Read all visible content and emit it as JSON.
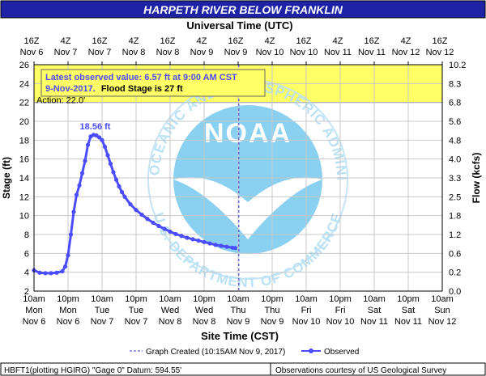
{
  "header": {
    "title": "HARPETH RIVER BELOW FRANKLIN",
    "top_axis_title": "Universal Time (UTC)"
  },
  "axes": {
    "left_label": "Stage (ft)",
    "right_label": "Flow (kcfs)",
    "bottom_label": "Site Time (CST)"
  },
  "top_ticks": [
    {
      "t": "16Z",
      "d": "Nov 6"
    },
    {
      "t": "4Z",
      "d": "Nov 7"
    },
    {
      "t": "16Z",
      "d": "Nov 7"
    },
    {
      "t": "4Z",
      "d": "Nov 8"
    },
    {
      "t": "16Z",
      "d": "Nov 8"
    },
    {
      "t": "4Z",
      "d": "Nov 9"
    },
    {
      "t": "16Z",
      "d": "Nov 9"
    },
    {
      "t": "4Z",
      "d": "Nov 10"
    },
    {
      "t": "16Z",
      "d": "Nov 10"
    },
    {
      "t": "4Z",
      "d": "Nov 11"
    },
    {
      "t": "16Z",
      "d": "Nov 11"
    },
    {
      "t": "4Z",
      "d": "Nov 12"
    },
    {
      "t": "16Z",
      "d": "Nov 12"
    }
  ],
  "bottom_ticks": [
    {
      "t": "10am",
      "w": "Mon",
      "d": "Nov 6"
    },
    {
      "t": "10pm",
      "w": "Mon",
      "d": "Nov 6"
    },
    {
      "t": "10am",
      "w": "Tue",
      "d": "Nov 7"
    },
    {
      "t": "10pm",
      "w": "Tue",
      "d": "Nov 7"
    },
    {
      "t": "10am",
      "w": "Wed",
      "d": "Nov 8"
    },
    {
      "t": "10pm",
      "w": "Wed",
      "d": "Nov 8"
    },
    {
      "t": "10am",
      "w": "Thu",
      "d": "Nov 9"
    },
    {
      "t": "10pm",
      "w": "Thu",
      "d": "Nov 9"
    },
    {
      "t": "10am",
      "w": "Fri",
      "d": "Nov 10"
    },
    {
      "t": "10pm",
      "w": "Fri",
      "d": "Nov 10"
    },
    {
      "t": "10am",
      "w": "Sat",
      "d": "Nov 11"
    },
    {
      "t": "10pm",
      "w": "Sat",
      "d": "Nov 11"
    },
    {
      "t": "10am",
      "w": "Sun",
      "d": "Nov 12"
    }
  ],
  "stage_ticks": [
    "2",
    "4",
    "6",
    "8",
    "10",
    "12",
    "14",
    "16",
    "18",
    "20",
    "22",
    "24",
    "26"
  ],
  "flow_ticks": [
    "0.0",
    "0.2",
    "0.6",
    "1.2",
    "1.8",
    "2.5",
    "3.3",
    "4.0",
    "4.8",
    "5.6",
    "6.8",
    "8.3",
    "10.2"
  ],
  "annotation": {
    "line1": "Latest observed value: 6.57 ft at 9:00 AM CST",
    "line2_date": "9-Nov-2017.",
    "line2_flood": "Flood Stage is 27 ft"
  },
  "action_label": "Action: 22.0'",
  "peak_label": "18.56 ft",
  "legend": {
    "created": "Graph Created (10:15AM Nov 9, 2017)",
    "observed": "Observed"
  },
  "footer": {
    "left": "HBFT1(plotting HGIRG) \"Gage 0\" Datum: 594.55'",
    "right": "Observations courtesy of US Geological Survey"
  },
  "watermark": {
    "circle_text_top": "NATIONAL OCEANIC AND ATMOSPHERIC ADMINISTRATION",
    "circle_text_bottom": "U.S. DEPARTMENT OF COMMERCE",
    "center": "NOAA"
  },
  "colors": {
    "title_bg": "#1e22a4",
    "series": "#4c4cff",
    "flood_band": "#ffff66",
    "created_line": "#3b3bd6",
    "watermark": "#7ecbef"
  },
  "chart_data": {
    "type": "line",
    "title": "HARPETH RIVER BELOW FRANKLIN",
    "xlabel": "Site Time (CST)",
    "ylabel": "Stage (ft)",
    "y2label": "Flow (kcfs)",
    "ylim": [
      2,
      26
    ],
    "xlim": [
      "2017-11-06 10:00",
      "2017-11-12 10:00"
    ],
    "action_stage": 22.0,
    "flood_stage": 27,
    "graph_created": "2017-11-09 10:15",
    "series": [
      {
        "name": "Observed",
        "x": [
          "2017-11-06 10:00",
          "2017-11-06 12:00",
          "2017-11-06 14:00",
          "2017-11-06 16:00",
          "2017-11-06 18:00",
          "2017-11-06 20:00",
          "2017-11-06 21:00",
          "2017-11-06 22:00",
          "2017-11-06 23:00",
          "2017-11-07 00:00",
          "2017-11-07 01:00",
          "2017-11-07 02:00",
          "2017-11-07 03:00",
          "2017-11-07 04:00",
          "2017-11-07 05:00",
          "2017-11-07 06:00",
          "2017-11-07 07:00",
          "2017-11-07 08:00",
          "2017-11-07 09:00",
          "2017-11-07 10:00",
          "2017-11-07 11:00",
          "2017-11-07 12:00",
          "2017-11-07 13:00",
          "2017-11-07 14:00",
          "2017-11-07 15:00",
          "2017-11-07 16:00",
          "2017-11-07 17:00",
          "2017-11-07 18:00",
          "2017-11-07 20:00",
          "2017-11-07 22:00",
          "2017-11-08 00:00",
          "2017-11-08 02:00",
          "2017-11-08 04:00",
          "2017-11-08 06:00",
          "2017-11-08 08:00",
          "2017-11-08 10:00",
          "2017-11-08 12:00",
          "2017-11-08 14:00",
          "2017-11-08 16:00",
          "2017-11-08 18:00",
          "2017-11-08 20:00",
          "2017-11-08 22:00",
          "2017-11-09 00:00",
          "2017-11-09 02:00",
          "2017-11-09 04:00",
          "2017-11-09 06:00",
          "2017-11-09 08:00",
          "2017-11-09 09:00"
        ],
        "y": [
          4.2,
          3.95,
          3.9,
          3.9,
          3.95,
          4.1,
          4.6,
          5.8,
          8.0,
          10.4,
          12.2,
          13.2,
          14.5,
          15.8,
          17.5,
          18.4,
          18.56,
          18.5,
          18.3,
          18.0,
          17.3,
          16.4,
          15.5,
          14.6,
          13.8,
          13.1,
          12.5,
          12.0,
          11.2,
          10.6,
          10.1,
          9.65,
          9.25,
          8.9,
          8.6,
          8.3,
          8.05,
          7.85,
          7.65,
          7.5,
          7.35,
          7.2,
          7.05,
          6.9,
          6.8,
          6.7,
          6.6,
          6.57
        ]
      }
    ]
  }
}
